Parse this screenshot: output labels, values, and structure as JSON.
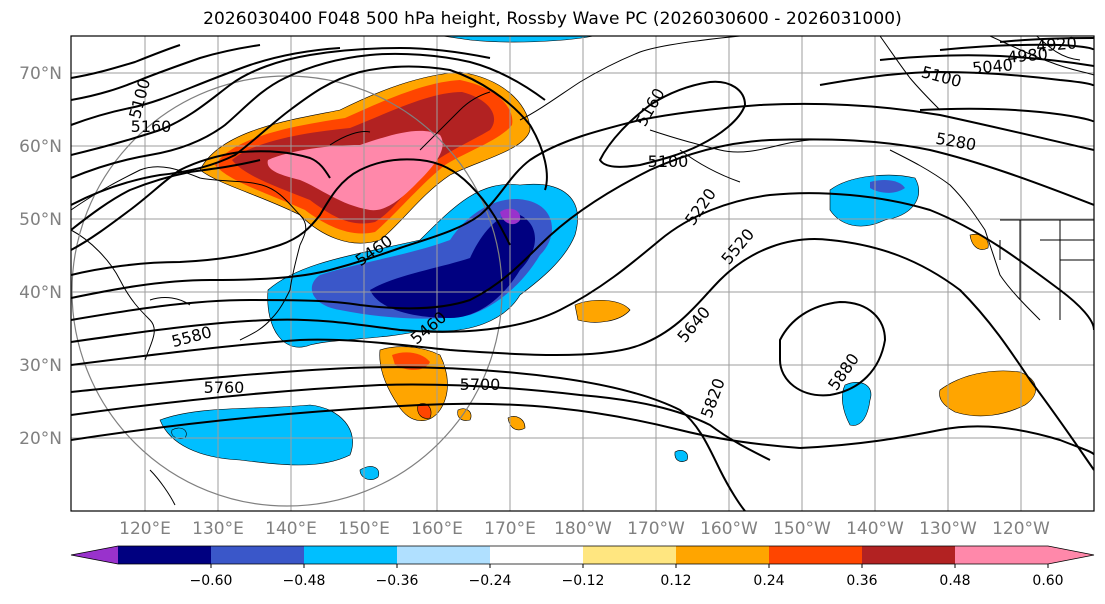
{
  "title": "2026030400 F048 500 hPa height, Rossby Wave PC (2026030600 - 2026031000)",
  "map": {
    "lat_labels": [
      "70°N",
      "60°N",
      "50°N",
      "40°N",
      "30°N",
      "20°N"
    ],
    "lon_labels": [
      "120°E",
      "130°E",
      "140°E",
      "150°E",
      "160°E",
      "170°E",
      "180°W",
      "170°W",
      "160°W",
      "150°W",
      "140°W",
      "130°W",
      "120°W"
    ]
  },
  "contour_labels": [
    "5100",
    "5160",
    "5160",
    "5100",
    "5280",
    "5220",
    "5520",
    "5640",
    "5820",
    "5880",
    "5700",
    "5760",
    "5580",
    "5460",
    "5460",
    "5100",
    "5040",
    "4980",
    "4920"
  ],
  "colorbar": {
    "ticks": [
      "−0.60",
      "−0.48",
      "−0.36",
      "−0.24",
      "−0.12",
      "0.12",
      "0.24",
      "0.36",
      "0.48",
      "0.60"
    ],
    "colors": {
      "under": "#9932cc",
      "bins": [
        "#000080",
        "#3a57c9",
        "#00bfff",
        "#b0e0ff",
        "#ffffff",
        "#ffe680",
        "#ffa500",
        "#ff4500",
        "#b22222",
        "#ff88aa"
      ],
      "over": "#ff88aa"
    }
  }
}
